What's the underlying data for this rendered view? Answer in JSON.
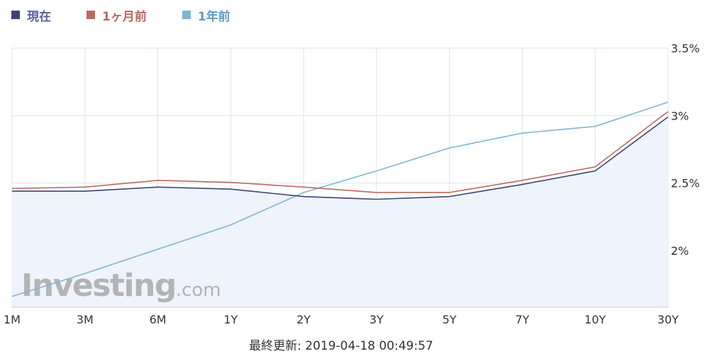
{
  "legend": {
    "current": "現在",
    "month_ago": "1ヶ月前",
    "year_ago": "1年前"
  },
  "colors": {
    "current": "#3d4574",
    "month_ago": "#b96a5f",
    "year_ago": "#7fb6d4",
    "fill": "#eef3fc",
    "grid": "#dde3ee",
    "watermark": "#b4b4b4"
  },
  "chart_data": {
    "type": "line",
    "categories": [
      "1M",
      "3M",
      "6M",
      "1Y",
      "2Y",
      "3Y",
      "5Y",
      "7Y",
      "10Y",
      "30Y"
    ],
    "y_tick_labels": [
      "2%",
      "2.5%",
      "3%",
      "3.5%"
    ],
    "y_ticks": [
      2.0,
      2.5,
      3.0,
      3.5
    ],
    "ylim": [
      1.58,
      3.5
    ],
    "y_axis_position": "right",
    "grid": true,
    "legend_position": "top-left",
    "series": [
      {
        "key": "current",
        "name": "現在",
        "values": [
          2.44,
          2.44,
          2.47,
          2.455,
          2.4,
          2.38,
          2.4,
          2.49,
          2.59,
          2.99
        ],
        "filled": true
      },
      {
        "key": "month_ago",
        "name": "1ヶ月前",
        "values": [
          2.46,
          2.47,
          2.52,
          2.505,
          2.47,
          2.43,
          2.43,
          2.52,
          2.62,
          3.03
        ],
        "filled": false
      },
      {
        "key": "year_ago",
        "name": "1年前",
        "values": [
          1.66,
          1.83,
          2.01,
          2.19,
          2.43,
          2.59,
          2.76,
          2.87,
          2.92,
          3.1
        ],
        "filled": false
      }
    ]
  },
  "watermark": {
    "brand": "Investing",
    "suffix": ".com"
  },
  "footer": {
    "updated": "最終更新: 2019-04-18 00:49:57"
  }
}
